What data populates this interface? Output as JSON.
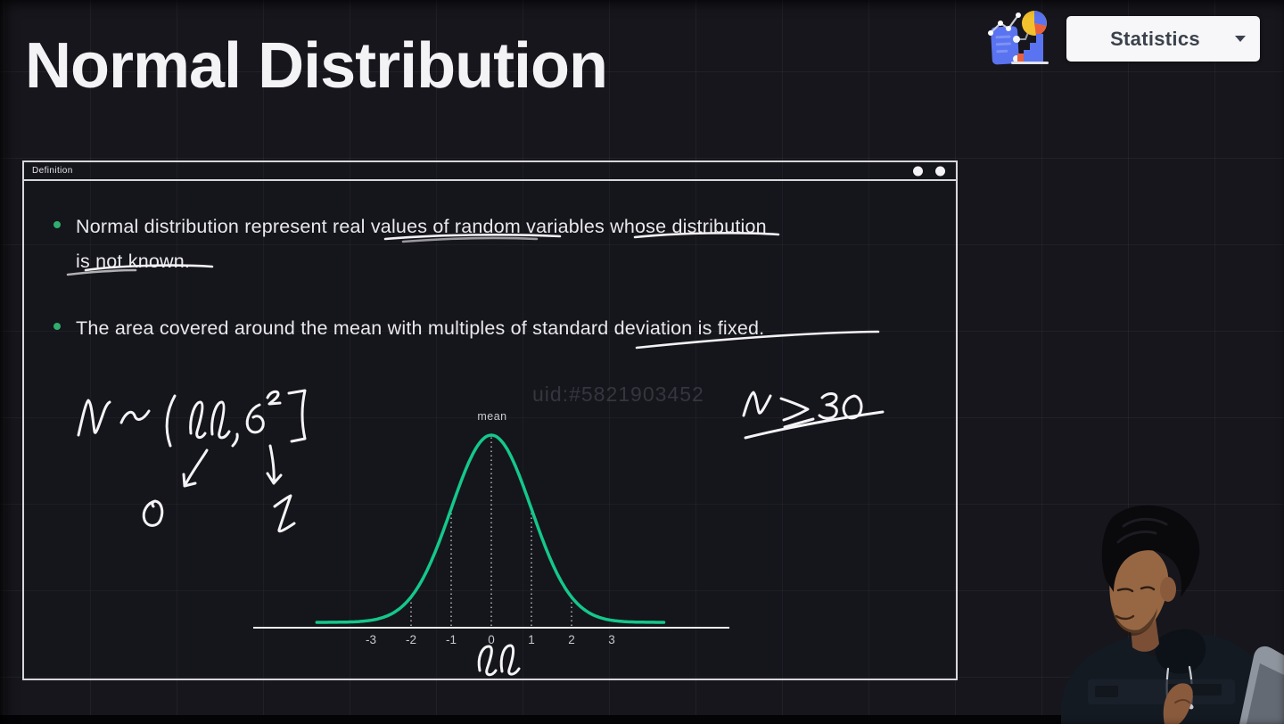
{
  "header": {
    "title": "Normal Distribution",
    "logo_icon": "statistics-analytics-icon",
    "course_selector": {
      "label": "Statistics",
      "icon": "chevron-down-icon"
    }
  },
  "definition_window": {
    "title": "Definition",
    "window_dots": [
      "dot",
      "dot"
    ],
    "bullets": [
      {
        "line1": "Normal distribution represent real values of random variables whose distribution",
        "line2": "is not known.",
        "underlined_phrases": [
          "real values of random",
          "variables whose",
          "not known."
        ]
      },
      {
        "line1": "The area covered around the mean with multiples of standard deviation is fixed.",
        "line2": "",
        "underlined_phrases": [
          "standard deviation is fixed."
        ]
      }
    ]
  },
  "watermark": "uid:#5821903452",
  "handwritten_annotations": {
    "formula": "N ~ (μ, σ²)",
    "mu_maps_to": "0",
    "sigma_maps_to": "1",
    "sample_size_note": "N ≥ 30",
    "x_axis_symbol": "μ"
  },
  "chart_data": {
    "type": "line",
    "curve": "standard_normal_pdf",
    "title": "",
    "mean_label": "mean",
    "x_tick_values": [
      -3,
      -2,
      -1,
      0,
      1,
      2,
      3
    ],
    "x_tick_labels": [
      "-3",
      "-2",
      "-1",
      "0",
      "1",
      "2",
      "3"
    ],
    "dotted_guides_at": [
      -2,
      -1,
      0,
      1,
      2
    ],
    "xlim": [
      -4.35,
      4.3
    ],
    "ylim": [
      0,
      1
    ],
    "grid": false,
    "legend": false,
    "curve_color": "#14c88a",
    "axis_color": "#ecedf0",
    "guide_color": "#c9ccd2",
    "x_axis_symbol": "μ"
  },
  "accent": {
    "bullet_green": "#2fae6e",
    "button_bg": "#f7f7f9",
    "button_text": "#3b424c"
  }
}
